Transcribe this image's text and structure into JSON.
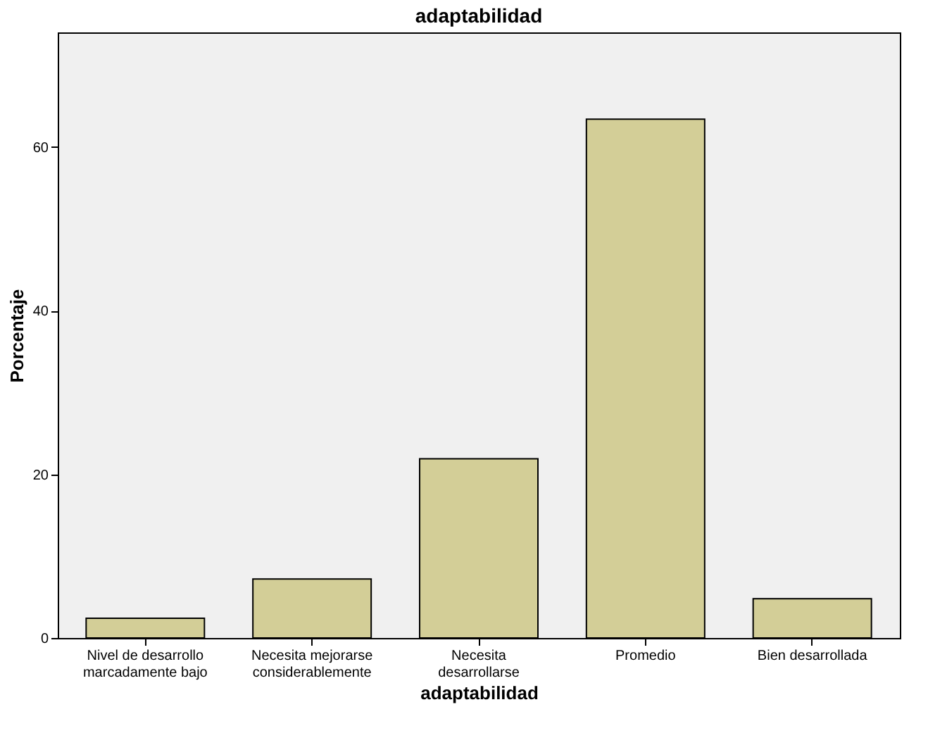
{
  "chart_data": {
    "type": "bar",
    "title": "adaptabilidad",
    "xlabel": "adaptabilidad",
    "ylabel": "Porcentaje",
    "categories": [
      "Nivel de desarrollo\nmarcadamente bajo",
      "Necesita mejorarse\nconsiderablemente",
      "Necesita\ndesarrollarse",
      "Promedio",
      "Bien desarrollada"
    ],
    "values": [
      2.4,
      7.2,
      21.9,
      63.4,
      4.8
    ],
    "color": "#d3ce97",
    "ylim": [
      0,
      74
    ],
    "yticks": [
      0,
      20,
      40,
      60
    ],
    "grid": false
  }
}
